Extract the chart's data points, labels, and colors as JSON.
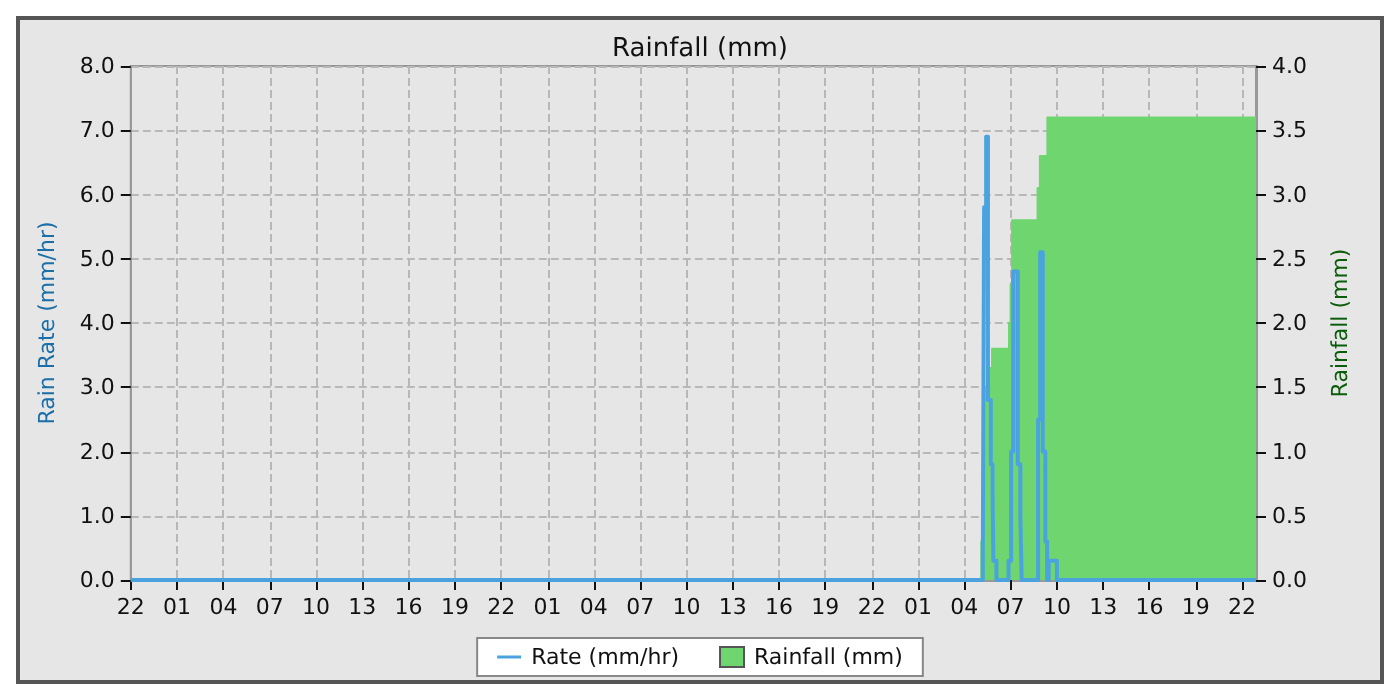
{
  "chart_data": {
    "type": "step",
    "title": "Rainfall (mm)",
    "ylabel": "Rain Rate (mm/hr)",
    "y2label": "Rainfall (mm)",
    "xlim": [
      "--01-01T22:00",
      "--01-04T22:54"
    ],
    "xticks": [
      {
        "value": "--01-01T22:00",
        "label": "22"
      },
      {
        "value": "--01-02T01:00",
        "label": "01"
      },
      {
        "value": "--01-02T04:00",
        "label": "04"
      },
      {
        "value": "--01-02T07:00",
        "label": "07"
      },
      {
        "value": "--01-02T10:00",
        "label": "10"
      },
      {
        "value": "--01-02T13:00",
        "label": "13"
      },
      {
        "value": "--01-02T16:00",
        "label": "16"
      },
      {
        "value": "--01-02T19:00",
        "label": "19"
      },
      {
        "value": "--01-02T22:00",
        "label": "22"
      },
      {
        "value": "--01-03T01:00",
        "label": "01"
      },
      {
        "value": "--01-03T04:00",
        "label": "04"
      },
      {
        "value": "--01-03T07:00",
        "label": "07"
      },
      {
        "value": "--01-03T10:00",
        "label": "10"
      },
      {
        "value": "--01-03T13:00",
        "label": "13"
      },
      {
        "value": "--01-03T16:00",
        "label": "16"
      },
      {
        "value": "--01-03T19:00",
        "label": "19"
      },
      {
        "value": "--01-03T22:00",
        "label": "22"
      },
      {
        "value": "--01-04T01:00",
        "label": "01"
      },
      {
        "value": "--01-04T04:00",
        "label": "04"
      },
      {
        "value": "--01-04T07:00",
        "label": "07"
      },
      {
        "value": "--01-04T10:00",
        "label": "10"
      },
      {
        "value": "--01-04T13:00",
        "label": "13"
      },
      {
        "value": "--01-04T16:00",
        "label": "16"
      },
      {
        "value": "--01-04T19:00",
        "label": "19"
      },
      {
        "value": "--01-04T22:00",
        "label": "22"
      }
    ],
    "ylim": [
      0,
      8
    ],
    "yticks": [
      {
        "value": 0,
        "label": "0.0"
      },
      {
        "value": 1,
        "label": "1.0"
      },
      {
        "value": 2,
        "label": "2.0"
      },
      {
        "value": 3,
        "label": "3.0"
      },
      {
        "value": 4,
        "label": "4.0"
      },
      {
        "value": 5,
        "label": "5.0"
      },
      {
        "value": 6,
        "label": "6.0"
      },
      {
        "value": 7,
        "label": "7.0"
      },
      {
        "value": 8,
        "label": "8.0"
      }
    ],
    "y2lim": [
      0,
      4
    ],
    "y2ticks": [
      {
        "value": 0,
        "label": "0.0"
      },
      {
        "value": 0.5,
        "label": "0.5"
      },
      {
        "value": 1,
        "label": "1.0"
      },
      {
        "value": 1.5,
        "label": "1.5"
      },
      {
        "value": 2,
        "label": "2.0"
      },
      {
        "value": 2.5,
        "label": "2.5"
      },
      {
        "value": 3,
        "label": "3.0"
      },
      {
        "value": 3.5,
        "label": "3.5"
      },
      {
        "value": 4,
        "label": "4.0"
      }
    ],
    "series": [
      {
        "name": "Rate (mm/hr)",
        "type": "step",
        "color": "#4aa3df",
        "x": [
          "--01-01T22:00",
          "--01-04T05:12",
          "--01-04T05:17",
          "--01-04T05:25",
          "--01-04T05:32",
          "--01-04T05:43",
          "--01-04T05:50",
          "--01-04T05:53",
          "--01-04T06:05",
          "--01-04T06:52",
          "--01-04T07:02",
          "--01-04T07:10",
          "--01-04T07:28",
          "--01-04T07:38",
          "--01-04T07:43",
          "--01-04T08:47",
          "--01-04T08:55",
          "--01-04T09:05",
          "--01-04T09:15",
          "--01-04T09:22",
          "--01-04T09:28",
          "--01-04T10:00",
          "--01-04T22:54"
        ],
        "values": [
          0,
          0.3,
          5.8,
          6.9,
          2.8,
          1.8,
          1.3,
          0.3,
          0,
          0.3,
          2.0,
          4.8,
          1.8,
          1.0,
          0,
          2.5,
          5.1,
          2.0,
          0.6,
          0,
          0.3,
          0,
          0
        ]
      },
      {
        "name": "Rainfall (mm)",
        "type": "area",
        "axis": "y2",
        "color": "#6fd66f",
        "x": [
          "--01-01T22:00",
          "--01-04T05:06",
          "--01-04T05:18",
          "--01-04T05:30",
          "--01-04T05:48",
          "--01-04T06:54",
          "--01-04T07:00",
          "--01-04T07:06",
          "--01-04T08:45",
          "--01-04T08:54",
          "--01-04T09:23",
          "--01-04T22:54"
        ],
        "values": [
          0,
          0.3,
          1.5,
          1.65,
          1.8,
          2.0,
          2.3,
          2.8,
          3.05,
          3.3,
          3.6,
          3.6
        ]
      }
    ],
    "grid": true,
    "legend": "bottom",
    "marker": "none",
    "line_style": "solid"
  }
}
